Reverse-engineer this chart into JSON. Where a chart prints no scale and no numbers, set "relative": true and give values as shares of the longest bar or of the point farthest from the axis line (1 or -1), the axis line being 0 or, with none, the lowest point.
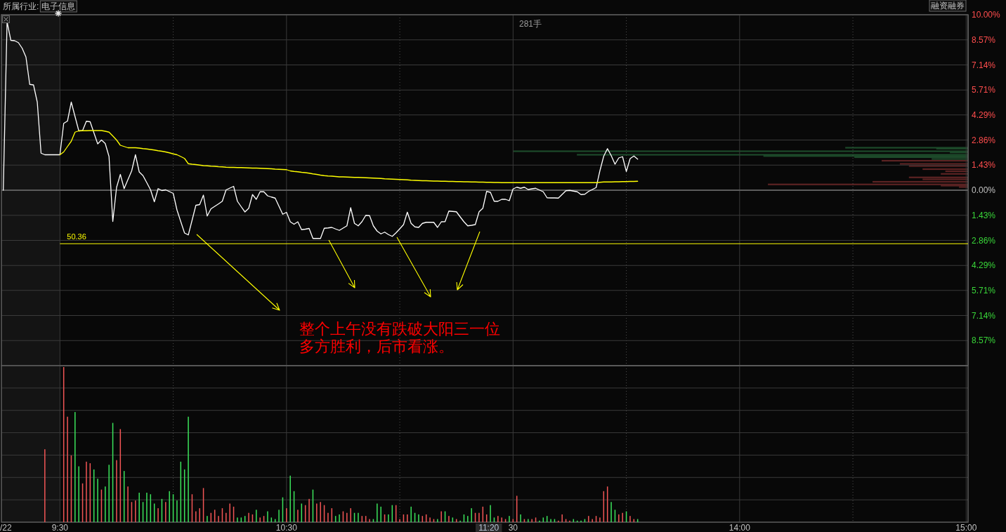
{
  "chart_data": [
    {
      "type": "line",
      "ylim": [
        -10,
        10
      ],
      "yticks": [
        {
          "value": 10,
          "label": "10.00%"
        },
        {
          "value": 8.57,
          "label": "8.57%"
        },
        {
          "value": 7.14,
          "label": "7.14%"
        },
        {
          "value": 5.71,
          "label": "5.71%"
        },
        {
          "value": 4.29,
          "label": "4.29%"
        },
        {
          "value": 2.86,
          "label": "2.86%"
        },
        {
          "value": 1.43,
          "label": "1.43%"
        },
        {
          "value": 0,
          "label": "0.00%"
        },
        {
          "value": -1.43,
          "label": "1.43%"
        },
        {
          "value": -2.86,
          "label": "2.86%"
        },
        {
          "value": -4.29,
          "label": "4.29%"
        },
        {
          "value": -5.71,
          "label": "5.71%"
        },
        {
          "value": -7.14,
          "label": "7.14%"
        },
        {
          "value": -8.57,
          "label": "8.57%"
        }
      ],
      "tick_labels": "y",
      "grid": true,
      "categories": [
        "/22",
        null,
        null,
        null,
        null,
        null,
        null,
        null,
        null,
        null,
        null,
        null,
        null,
        null,
        null,
        "9:30",
        null,
        null,
        null,
        null,
        null,
        null,
        null,
        null,
        null,
        null,
        null,
        null,
        null,
        null,
        null,
        null,
        null,
        null,
        null,
        null,
        null,
        null,
        null,
        null,
        null,
        null,
        null,
        null,
        null,
        null,
        null,
        null,
        null,
        null,
        null,
        null,
        null,
        null,
        null,
        null,
        null,
        null,
        null,
        null,
        null,
        null,
        null,
        null,
        null,
        null,
        null,
        null,
        null,
        null,
        null,
        null,
        null,
        null,
        null,
        "10:30",
        null,
        null,
        null,
        null,
        null,
        null,
        null,
        null,
        null,
        null,
        null,
        null,
        null,
        null,
        null,
        null,
        null,
        null,
        null,
        null,
        null,
        null,
        null,
        null,
        null,
        null,
        null,
        null,
        null,
        null,
        null,
        null,
        null,
        null,
        null,
        null,
        null,
        null,
        null,
        null,
        null,
        null,
        null,
        null,
        null,
        null,
        null,
        null,
        null,
        null,
        null,
        null,
        null,
        null,
        null,
        null,
        null,
        null,
        null,
        "30",
        null,
        null,
        null,
        null,
        null,
        null,
        null,
        null,
        null,
        null,
        null,
        null,
        null,
        null,
        null,
        null,
        null,
        null,
        null,
        null,
        null,
        null,
        null,
        null,
        null,
        null,
        null,
        null,
        null,
        null,
        null,
        null,
        null,
        null,
        null,
        null,
        null,
        null,
        null,
        null,
        null,
        null,
        null,
        null,
        null,
        null,
        null,
        null,
        null,
        null,
        null,
        null,
        null,
        null,
        null,
        null,
        null,
        null,
        null,
        "14:00",
        null,
        null,
        null,
        null,
        null,
        null,
        null,
        null,
        null,
        null,
        null,
        null,
        null,
        null,
        null,
        null,
        null,
        null,
        null,
        null,
        null,
        null,
        null,
        null,
        null,
        null,
        null,
        null,
        null,
        null,
        null,
        null,
        null,
        null,
        null,
        null,
        null,
        null,
        null,
        null,
        null,
        null,
        null,
        null,
        null,
        null,
        null,
        null,
        null,
        null,
        null,
        null,
        null,
        null,
        null,
        null,
        null,
        null,
        null,
        "15:00"
      ],
      "bands": [
        {
          "axis": "x",
          "from": "/22",
          "to": "9:30",
          "color": "#141414"
        }
      ],
      "ref_lines": [
        {
          "axis": "y",
          "value": -3.05,
          "color": "#ffff00"
        }
      ],
      "series": [
        {
          "color": "#ffffff",
          "values": [
            0.0,
            9.6,
            8.54,
            8.52,
            8.41,
            8.09,
            7.59,
            6.03,
            6.0,
            5.02,
            2.11,
            2.02,
            2.02,
            2.02,
            2.02,
            2.02,
            3.81,
            3.94,
            5.02,
            4.2,
            3.38,
            3.4,
            3.93,
            3.9,
            3.27,
            2.64,
            2.86,
            2.66,
            1.92,
            -1.78,
            0.16,
            0.9,
            0.09,
            0.6,
            1.1,
            2.02,
            1.04,
            0.83,
            0.43,
            0.02,
            -0.66,
            0.09,
            -0.02,
            0.02,
            -0.08,
            -0.18,
            -1.13,
            -1.79,
            -2.44,
            -2.55,
            -1.71,
            -0.86,
            -0.82,
            -0.28,
            -1.47,
            -1.06,
            -0.92,
            -0.78,
            -0.63,
            0.02,
            0.12,
            0.22,
            -0.63,
            -0.94,
            -1.24,
            -1.03,
            -0.25,
            -0.52,
            -0.09,
            -0.09,
            -0.32,
            -0.39,
            -0.45,
            -0.91,
            -1.37,
            -1.26,
            -1.8,
            -1.94,
            -1.8,
            -2.25,
            -2.22,
            -2.18,
            -2.75,
            -2.75,
            -2.75,
            -2.17,
            -2.15,
            -2.12,
            -2.21,
            -2.29,
            -2.16,
            -2.03,
            -1.0,
            -1.89,
            -2.03,
            -1.79,
            -1.43,
            -1.45,
            -2.03,
            -2.33,
            -2.49,
            -2.39,
            -2.53,
            -2.63,
            -2.43,
            -2.2,
            -1.96,
            -1.25,
            -1.89,
            -2.09,
            -2.12,
            -1.89,
            -1.83,
            -1.83,
            -1.83,
            -2.12,
            -1.8,
            -1.79,
            -1.19,
            -1.21,
            -1.23,
            -1.52,
            -1.8,
            -2.03,
            -2.0,
            -1.96,
            -1.23,
            -1.03,
            -0.07,
            -0.12,
            -0.63,
            -0.63,
            -0.52,
            -0.52,
            -0.6,
            0.07,
            0.17,
            0.11,
            0.17,
            0.04,
            0.08,
            0.11,
            0.01,
            -0.09,
            -0.43,
            -0.44,
            -0.44,
            -0.45,
            -0.24,
            -0.03,
            -0.01,
            -0.05,
            -0.09,
            -0.25,
            -0.23,
            -0.07,
            0.04,
            0.15,
            1.11,
            1.93,
            2.37,
            1.97,
            1.48,
            1.84,
            1.91,
            1.07,
            1.8,
            1.95,
            1.77,
            null,
            null,
            null,
            null,
            null,
            null,
            null,
            null,
            null,
            null,
            null,
            null,
            null,
            null,
            null,
            null,
            null,
            null,
            null,
            null,
            null,
            null,
            null,
            null,
            null,
            null,
            null,
            null,
            null,
            null,
            null,
            null,
            null,
            null,
            null,
            null,
            null,
            null,
            null,
            null,
            null,
            null,
            null,
            null,
            null,
            null,
            null,
            null,
            null,
            null,
            null,
            null,
            null,
            null,
            null,
            null,
            null,
            null,
            null,
            null,
            null,
            null,
            null,
            null,
            null,
            null,
            null,
            null,
            null,
            null,
            null,
            null,
            null,
            null,
            null,
            null,
            null,
            null,
            null,
            null,
            null,
            null,
            null,
            null,
            null,
            null,
            null
          ]
        },
        {
          "color": "#ffff00",
          "values": [
            null,
            null,
            null,
            null,
            null,
            null,
            null,
            null,
            null,
            null,
            null,
            null,
            null,
            null,
            null,
            2.02,
            2.18,
            2.49,
            2.79,
            3.31,
            3.38,
            3.39,
            3.39,
            3.4,
            3.4,
            3.4,
            3.4,
            3.36,
            3.31,
            3.09,
            2.86,
            2.56,
            2.49,
            2.42,
            2.42,
            2.42,
            2.4,
            2.37,
            2.35,
            2.32,
            2.29,
            2.25,
            2.22,
            2.18,
            2.13,
            2.07,
            2.02,
            1.92,
            1.81,
            1.51,
            1.48,
            1.46,
            1.43,
            1.4,
            1.39,
            1.37,
            1.36,
            1.34,
            1.33,
            1.31,
            1.3,
            1.3,
            1.29,
            1.29,
            1.28,
            1.27,
            1.26,
            1.26,
            1.25,
            1.24,
            1.23,
            1.22,
            1.2,
            1.19,
            1.18,
            1.17,
            1.1,
            1.07,
            1.05,
            1.02,
            1.0,
            0.97,
            0.93,
            0.9,
            0.86,
            0.83,
            0.81,
            0.8,
            0.78,
            0.76,
            0.76,
            0.75,
            0.74,
            0.73,
            0.73,
            0.72,
            0.71,
            0.7,
            0.69,
            0.68,
            0.67,
            0.65,
            0.64,
            0.63,
            0.62,
            0.61,
            0.6,
            0.59,
            0.57,
            0.56,
            0.55,
            0.54,
            0.54,
            0.53,
            0.52,
            0.52,
            0.51,
            0.51,
            0.5,
            0.5,
            0.49,
            0.49,
            0.48,
            0.48,
            0.47,
            0.47,
            0.46,
            0.46,
            0.45,
            0.45,
            0.44,
            0.44,
            0.43,
            0.43,
            0.43,
            0.43,
            0.43,
            0.43,
            0.43,
            0.43,
            0.43,
            0.43,
            0.43,
            0.43,
            0.43,
            0.43,
            0.43,
            0.43,
            0.43,
            0.43,
            0.43,
            0.43,
            0.43,
            0.43,
            0.43,
            0.43,
            0.43,
            0.43,
            0.45,
            0.47,
            0.47,
            0.47,
            0.48,
            0.48,
            0.49,
            0.49,
            0.5,
            0.5,
            0.51,
            null,
            null,
            null,
            null,
            null,
            null,
            null,
            null,
            null,
            null,
            null,
            null,
            null,
            null,
            null,
            null,
            null,
            null,
            null,
            null,
            null,
            null,
            null,
            null,
            null,
            null,
            null,
            null,
            null,
            null,
            null,
            null,
            null,
            null,
            null,
            null,
            null,
            null,
            null,
            null,
            null,
            null,
            null,
            null,
            null,
            null,
            null,
            null,
            null,
            null,
            null,
            null,
            null,
            null,
            null,
            null,
            null,
            null,
            null,
            null,
            null,
            null,
            null,
            null,
            null,
            null,
            null,
            null,
            null,
            null,
            null,
            null,
            null,
            null,
            null,
            null,
            null,
            null,
            null,
            null,
            null,
            null,
            null,
            null,
            null,
            null,
            null
          ]
        }
      ],
      "annotations": [
        "所属行业:",
        "电子信息",
        "50.36",
        "整个上午没有跌破大阳三一位",
        "多方胜利，后市看涨。",
        "融资融券",
        "281手"
      ]
    },
    {
      "type": "bar",
      "orientation": "horizontal",
      "relative": true,
      "ylim": [
        -10,
        10
      ],
      "x": [
        2.42,
        2.37,
        2.22,
        2.15,
        2.02,
        1.95,
        1.88,
        1.78,
        1.68,
        1.5,
        1.38,
        1.2,
        1.08,
        0.93,
        0.73,
        0.62,
        0.48,
        0.33,
        0.26,
        0.18
      ],
      "values": [
        0.27,
        0.07,
        1.0,
        0.04,
        0.86,
        0.45,
        0.25,
        0.08,
        0.19,
        0.15,
        0.13,
        0.1,
        0.05,
        0.06,
        0.13,
        0.1,
        0.21,
        0.44,
        0.06,
        0.02
      ],
      "colors": [
        "#1d4a2a",
        "#1d4a2a",
        "#1d4a2a",
        "#1d4a2a",
        "#1d4a2a",
        "#1d4a2a",
        "#1d4a2a",
        "#1d4a2a",
        "#5c2323",
        "#5c2323",
        "#5c2323",
        "#5c2323",
        "#5c2323",
        "#5c2323",
        "#5c2323",
        "#5c2323",
        "#5c2323",
        "#5c2323",
        "#5c2323",
        "#5c2323"
      ]
    },
    {
      "type": "bar",
      "relative": true,
      "grid": true,
      "categories": [
        "/22",
        null,
        null,
        null,
        null,
        null,
        null,
        null,
        null,
        null,
        null,
        null,
        null,
        null,
        null,
        "9:30",
        null,
        null,
        null,
        null,
        null,
        null,
        null,
        null,
        null,
        null,
        null,
        null,
        null,
        null,
        null,
        null,
        null,
        null,
        null,
        null,
        null,
        null,
        null,
        null,
        null,
        null,
        null,
        null,
        null,
        null,
        null,
        null,
        null,
        null,
        null,
        null,
        null,
        null,
        null,
        null,
        null,
        null,
        null,
        null,
        null,
        null,
        null,
        null,
        null,
        null,
        null,
        null,
        null,
        null,
        null,
        null,
        null,
        null,
        null,
        "10:30",
        null,
        null,
        null,
        null,
        null,
        null,
        null,
        null,
        null,
        null,
        null,
        null,
        null,
        null,
        null,
        null,
        null,
        null,
        null,
        null,
        null,
        null,
        null,
        null,
        null,
        null,
        null,
        null,
        null,
        null,
        null,
        null,
        null,
        null,
        null,
        null,
        null,
        null,
        null,
        null,
        null,
        null,
        null,
        null,
        null,
        null,
        null,
        null,
        null,
        null,
        null,
        null,
        null,
        null,
        null,
        null,
        null,
        null,
        null,
        "30",
        null,
        null,
        null,
        null,
        null,
        null,
        null,
        null,
        null,
        null,
        null,
        null,
        null,
        null,
        null,
        null,
        null,
        null,
        null,
        null,
        null,
        null,
        null,
        null,
        null,
        null,
        null,
        null,
        null,
        null,
        null,
        null,
        null,
        null,
        null,
        null,
        null,
        null,
        null,
        null,
        null,
        null,
        null,
        null,
        null,
        null,
        null,
        null,
        null,
        null,
        null,
        null,
        null,
        null,
        null,
        null,
        null,
        null,
        null,
        "14:00",
        null,
        null,
        null,
        null,
        null,
        null,
        null,
        null,
        null,
        null,
        null,
        null,
        null,
        null,
        null,
        null,
        null,
        null,
        null,
        null,
        null,
        null,
        null,
        null,
        null,
        null,
        null,
        null,
        null,
        null,
        null,
        null,
        null,
        null,
        null,
        null,
        null,
        null,
        null,
        null,
        null,
        null,
        null,
        null,
        null,
        null,
        null,
        null,
        null,
        null,
        null,
        null,
        null,
        null,
        null,
        null,
        null,
        null,
        null,
        "15:00"
      ],
      "bands": [
        {
          "axis": "x",
          "from": "/22",
          "to": "9:30",
          "color": "#141414"
        }
      ],
      "values": [
        null,
        null,
        null,
        null,
        null,
        null,
        null,
        null,
        null,
        null,
        null,
        0.47,
        null,
        null,
        null,
        null,
        1.0,
        0.68,
        0.43,
        0.71,
        0.36,
        0.25,
        0.39,
        0.38,
        0.34,
        0.28,
        0.21,
        0.23,
        0.37,
        0.64,
        0.4,
        0.6,
        0.33,
        0.23,
        0.13,
        0.14,
        0.19,
        0.13,
        0.19,
        0.18,
        0.12,
        0.09,
        0.15,
        0.13,
        0.2,
        0.18,
        0.14,
        0.39,
        0.34,
        0.68,
        0.18,
        0.07,
        0.09,
        0.22,
        0.04,
        0.06,
        0.08,
        0.04,
        0.09,
        0.06,
        0.12,
        0.1,
        0.03,
        0.03,
        0.04,
        0.06,
        0.05,
        0.08,
        0.03,
        0.04,
        0.07,
        0.03,
        0.02,
        0.08,
        0.16,
        0.09,
        0.3,
        0.2,
        0.08,
        0.12,
        0.11,
        0.15,
        0.21,
        0.12,
        0.13,
        0.11,
        0.06,
        0.09,
        0.04,
        0.05,
        0.07,
        0.06,
        0.09,
        0.06,
        0.06,
        0.04,
        0.04,
        0.02,
        0.02,
        0.12,
        0.1,
        0.05,
        0.05,
        0.11,
        0.11,
        0.02,
        0.05,
        0.05,
        0.1,
        0.06,
        0.05,
        0.04,
        0.05,
        0.03,
        0.02,
        0.02,
        0.07,
        0.07,
        0.04,
        0.03,
        0.02,
        0.01,
        0.05,
        0.04,
        0.09,
        0.06,
        0.06,
        0.1,
        0.05,
        0.11,
        0.03,
        0.04,
        0.03,
        0.02,
        0.04,
        0.02,
        0.17,
        0.05,
        0.02,
        0.02,
        0.02,
        0.03,
        0.01,
        0.03,
        0.04,
        0.02,
        0.02,
        0.01,
        0.05,
        0.02,
        0.01,
        0.02,
        0.01,
        0.01,
        0.02,
        0.04,
        0.02,
        0.04,
        0.03,
        0.2,
        0.23,
        0.13,
        0.08,
        0.05,
        0.06,
        0.07,
        0.04,
        0.02,
        0.02,
        null,
        null,
        null,
        null,
        null,
        null,
        null,
        null,
        null,
        null,
        null,
        null,
        null,
        null,
        null,
        null,
        null,
        null,
        null,
        null,
        null,
        null,
        null,
        null,
        null,
        null,
        null,
        null,
        null,
        null,
        null,
        null,
        null,
        null,
        null,
        null,
        null,
        null,
        null,
        null,
        null,
        null,
        null,
        null,
        null,
        null,
        null,
        null,
        null,
        null,
        null,
        null,
        null,
        null,
        null,
        null,
        null,
        null,
        null,
        null,
        null,
        null,
        null,
        null,
        null,
        null,
        null,
        null,
        null,
        null,
        null,
        null,
        null,
        null,
        null,
        null,
        null,
        null,
        null,
        null,
        null,
        null,
        null,
        null,
        null,
        null,
        null
      ],
      "colors": [
        null,
        null,
        null,
        null,
        null,
        null,
        null,
        null,
        null,
        null,
        null,
        "#f25555",
        null,
        null,
        null,
        null,
        "#f25555",
        "#f25555",
        "#f25555",
        "#3be35b",
        "#3be35b",
        "#f25555",
        "#f25555",
        "#f25555",
        "#3be35b",
        "#3be35b",
        "#f25555",
        "#3be35b",
        "#3be35b",
        "#3be35b",
        "#f25555",
        "#f25555",
        "#3be35b",
        "#f25555",
        "#f25555",
        "#f25555",
        "#3be35b",
        "#3be35b",
        "#3be35b",
        "#3be35b",
        "#3be35b",
        "#f25555",
        "#3be35b",
        "#f25555",
        "#3be35b",
        "#3be35b",
        "#3be35b",
        "#3be35b",
        "#3be35b",
        "#3be35b",
        "#f25555",
        "#f25555",
        "#f25555",
        "#f25555",
        "#3be35b",
        "#f25555",
        "#f25555",
        "#f25555",
        "#f25555",
        "#f25555",
        "#f25555",
        "#f25555",
        "#3be35b",
        "#3be35b",
        "#3be35b",
        "#f25555",
        "#f25555",
        "#3be35b",
        "#f25555",
        "#f25555",
        "#3be35b",
        "#3be35b",
        "#3be35b",
        "#3be35b",
        "#3be35b",
        "#f25555",
        "#3be35b",
        "#3be35b",
        "#f25555",
        "#3be35b",
        "#f25555",
        "#f25555",
        "#3be35b",
        "#f25555",
        "#f25555",
        "#f25555",
        "#f25555",
        "#f25555",
        "#3be35b",
        "#3be35b",
        "#f25555",
        "#f25555",
        "#f25555",
        "#3be35b",
        "#3be35b",
        "#f25555",
        "#f25555",
        "#f25555",
        "#3be35b",
        "#3be35b",
        "#3be35b",
        "#f25555",
        "#3be35b",
        "#3be35b",
        "#f25555",
        "#f25555",
        "#f25555",
        "#f25555",
        "#3be35b",
        "#3be35b",
        "#3be35b",
        "#f25555",
        "#f25555",
        "#f25555",
        "#f25555",
        "#3be35b",
        "#f25555",
        "#3be35b",
        "#f25555",
        "#3be35b",
        "#f25555",
        "#3be35b",
        "#3be35b",
        "#3be35b",
        "#3be35b",
        "#f25555",
        "#f25555",
        "#f25555",
        "#f25555",
        "#3be35b",
        "#3be35b",
        "#f25555",
        "#f25555",
        "#f25555",
        "#3be35b",
        "#f25555",
        "#f25555",
        "#3be35b",
        "#f25555",
        "#3be35b",
        "#f25555",
        "#f25555",
        "#3be35b",
        "#3be35b",
        "#3be35b",
        "#3be35b",
        "#3be35b",
        "#f25555",
        "#f25555",
        "#f25555",
        "#f25555",
        "#3be35b",
        "#3be35b",
        "#3be35b",
        "#3be35b",
        "#f25555",
        "#f25555",
        "#f25555",
        "#f25555",
        "#f25555",
        "#f25555",
        "#3be35b",
        "#3be35b",
        "#f25555",
        "#f25555",
        "#3be35b",
        "#f25555",
        "#f25555",
        "#3be35b",
        null,
        null,
        null,
        null,
        null,
        null,
        null,
        null,
        null,
        null,
        null,
        null,
        null,
        null,
        null,
        null,
        null,
        null,
        null,
        null,
        null,
        null,
        null,
        null,
        null,
        null,
        null,
        null,
        null,
        null,
        null,
        null,
        null,
        null,
        null,
        null,
        null,
        null,
        null,
        null,
        null,
        null,
        null,
        null,
        null,
        null,
        null,
        null,
        null,
        null,
        null,
        null,
        null,
        null,
        null,
        null,
        null,
        null,
        null,
        null,
        null,
        null,
        null,
        null,
        null,
        null,
        null,
        null,
        null,
        null,
        null,
        null,
        null,
        null,
        null,
        null,
        null,
        null,
        null,
        null,
        null,
        null,
        null,
        null,
        null,
        null,
        null
      ],
      "annotations": [
        "11:20"
      ]
    }
  ]
}
